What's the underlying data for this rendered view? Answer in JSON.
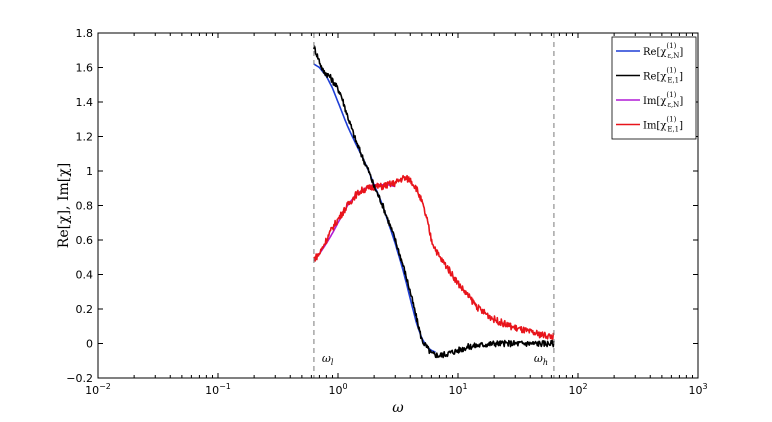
{
  "chart_data": {
    "type": "line",
    "x_scale": "log",
    "xlim": [
      0.01,
      1000
    ],
    "ylim": [
      -0.2,
      1.8
    ],
    "xlabel": "ω",
    "ylabel": "Re[χ], Im[χ]",
    "x_ticks": [
      {
        "value": 0.01,
        "base": "10",
        "exp": "−2"
      },
      {
        "value": 0.1,
        "base": "10",
        "exp": "−1"
      },
      {
        "value": 1,
        "base": "10",
        "exp": "0"
      },
      {
        "value": 10,
        "base": "10",
        "exp": "1"
      },
      {
        "value": 100,
        "base": "10",
        "exp": "2"
      },
      {
        "value": 1000,
        "base": "10",
        "exp": "3"
      }
    ],
    "y_ticks": [
      {
        "value": -0.2,
        "label": "−0.2"
      },
      {
        "value": 0,
        "label": "0"
      },
      {
        "value": 0.2,
        "label": "0.2"
      },
      {
        "value": 0.4,
        "label": "0.4"
      },
      {
        "value": 0.6,
        "label": "0.6"
      },
      {
        "value": 0.8,
        "label": "0.8"
      },
      {
        "value": 1,
        "label": "1"
      },
      {
        "value": 1.2,
        "label": "1.2"
      },
      {
        "value": 1.4,
        "label": "1.4"
      },
      {
        "value": 1.6,
        "label": "1.6"
      },
      {
        "value": 1.8,
        "label": "1.8"
      }
    ],
    "vlines": [
      {
        "x": 0.63,
        "label": "ω",
        "sub": "l"
      },
      {
        "x": 63,
        "label": "ω",
        "sub": "h"
      }
    ],
    "legend_position": "top-right",
    "grid": false,
    "series": [
      {
        "name": "Re[χ(1)ε,N]",
        "label_main": "Re[χ",
        "label_sub": "ε,N",
        "label_sup": "(1)",
        "color": "#1f3fd6",
        "noise": 0,
        "x": [
          0.63,
          0.7,
          0.8,
          0.9,
          1.0,
          1.2,
          1.4,
          1.6,
          1.8,
          2.0,
          2.3,
          2.6,
          3.0,
          3.5,
          4.0,
          4.5,
          5.0,
          5.5,
          6.0,
          6.5
        ],
        "y": [
          1.62,
          1.6,
          1.55,
          1.48,
          1.4,
          1.26,
          1.16,
          1.08,
          1.0,
          0.92,
          0.82,
          0.71,
          0.58,
          0.42,
          0.26,
          0.12,
          0.03,
          -0.02,
          -0.04,
          -0.05
        ]
      },
      {
        "name": "Re[χ(1)E,1]",
        "label_main": "Re[χ",
        "label_sub": "E,1",
        "label_sup": "(1)",
        "color": "#000000",
        "noise": 0.018,
        "x": [
          0.63,
          0.68,
          0.75,
          0.85,
          0.95,
          1.05,
          1.2,
          1.4,
          1.6,
          1.8,
          2.0,
          2.3,
          2.6,
          3.0,
          3.5,
          4.0,
          4.5,
          5.0,
          6.0,
          7.0,
          8.0,
          10,
          12,
          15,
          20,
          30,
          40,
          63
        ],
        "y": [
          1.72,
          1.66,
          1.58,
          1.55,
          1.5,
          1.45,
          1.32,
          1.18,
          1.08,
          1.0,
          0.91,
          0.82,
          0.72,
          0.6,
          0.45,
          0.3,
          0.15,
          0.02,
          -0.06,
          -0.07,
          -0.06,
          -0.04,
          -0.02,
          -0.01,
          0.0,
          0.0,
          0.0,
          0.0
        ]
      },
      {
        "name": "Im[χ(1)ε,N]",
        "label_main": "Im[χ",
        "label_sub": "ε,N",
        "label_sup": "(1)",
        "color": "#b01ad6",
        "noise": 0,
        "x": [
          0.63,
          0.7,
          0.8,
          0.9,
          1.0,
          1.2,
          1.4,
          1.6,
          1.8,
          2.0,
          2.3,
          2.6,
          3.0
        ],
        "y": [
          0.48,
          0.52,
          0.58,
          0.64,
          0.7,
          0.8,
          0.86,
          0.89,
          0.91,
          0.92,
          0.92,
          0.92,
          0.91
        ]
      },
      {
        "name": "Im[χ(1)E,1]",
        "label_main": "Im[χ",
        "label_sub": "E,1",
        "label_sup": "(1)",
        "color": "#e8141b",
        "noise": 0.02,
        "x": [
          0.63,
          0.7,
          0.8,
          0.9,
          1.0,
          1.2,
          1.4,
          1.6,
          1.8,
          2.0,
          2.3,
          2.6,
          3.0,
          3.5,
          4.0,
          4.5,
          5.0,
          5.5,
          6.0,
          7.0,
          8.0,
          10,
          12,
          15,
          20,
          25,
          30,
          40,
          50,
          63
        ],
        "y": [
          0.49,
          0.52,
          0.6,
          0.67,
          0.72,
          0.8,
          0.86,
          0.89,
          0.9,
          0.91,
          0.91,
          0.92,
          0.93,
          0.96,
          0.95,
          0.9,
          0.82,
          0.72,
          0.6,
          0.5,
          0.45,
          0.35,
          0.28,
          0.2,
          0.14,
          0.11,
          0.09,
          0.065,
          0.05,
          0.04
        ]
      }
    ]
  }
}
